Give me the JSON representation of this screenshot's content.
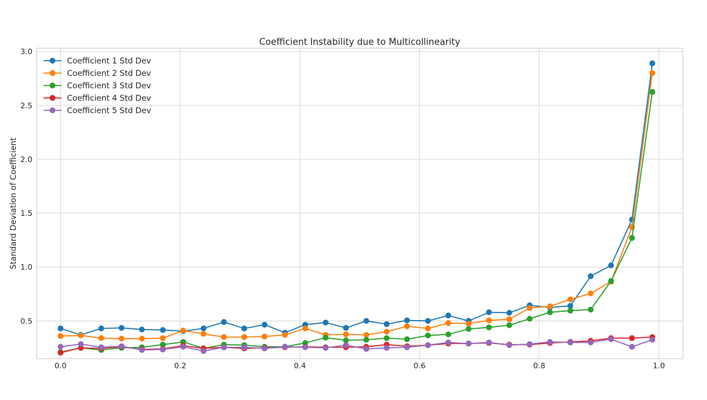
{
  "chart_data": {
    "type": "line",
    "title": "Coefficient Instability due to Multicollinearity",
    "xlabel": "",
    "ylabel": "Standard Deviation of Coefficient",
    "xlim": [
      -0.04,
      1.04
    ],
    "ylim": [
      0.15,
      3.03
    ],
    "xticks": [
      0.0,
      0.2,
      0.4,
      0.6,
      0.8,
      1.0
    ],
    "xtick_labels": [
      "0.0",
      "0.2",
      "0.4",
      "0.6",
      "0.8",
      "1.0"
    ],
    "yticks": [
      0.5,
      1.0,
      1.5,
      2.0,
      2.5,
      3.0
    ],
    "ytick_labels": [
      "0.5",
      "1.0",
      "1.5",
      "2.0",
      "2.5",
      "3.0"
    ],
    "grid": true,
    "legend_position": "upper-left",
    "x": [
      0.0,
      0.034,
      0.068,
      0.102,
      0.136,
      0.171,
      0.205,
      0.239,
      0.273,
      0.307,
      0.341,
      0.375,
      0.409,
      0.443,
      0.477,
      0.511,
      0.545,
      0.579,
      0.614,
      0.648,
      0.682,
      0.716,
      0.75,
      0.784,
      0.818,
      0.852,
      0.886,
      0.92,
      0.955,
      0.989
    ],
    "series": [
      {
        "name": "Coefficient 1 Std Dev",
        "color": "#1f77b4",
        "values": [
          0.43,
          0.37,
          0.43,
          0.435,
          0.42,
          0.415,
          0.405,
          0.43,
          0.49,
          0.43,
          0.465,
          0.39,
          0.465,
          0.485,
          0.435,
          0.5,
          0.47,
          0.505,
          0.5,
          0.55,
          0.5,
          0.58,
          0.575,
          0.645,
          0.625,
          0.64,
          0.915,
          1.015,
          1.44,
          2.89
        ]
      },
      {
        "name": "Coefficient 2 Std Dev",
        "color": "#ff7f0e",
        "values": [
          0.36,
          0.365,
          0.34,
          0.335,
          0.335,
          0.34,
          0.41,
          0.38,
          0.35,
          0.35,
          0.355,
          0.37,
          0.43,
          0.37,
          0.375,
          0.37,
          0.4,
          0.45,
          0.43,
          0.48,
          0.475,
          0.505,
          0.515,
          0.62,
          0.635,
          0.7,
          0.755,
          0.865,
          1.37,
          2.8
        ]
      },
      {
        "name": "Coefficient 3 Std Dev",
        "color": "#2ca02c",
        "values": [
          0.21,
          0.25,
          0.23,
          0.25,
          0.255,
          0.28,
          0.305,
          0.245,
          0.28,
          0.275,
          0.26,
          0.26,
          0.295,
          0.345,
          0.32,
          0.325,
          0.34,
          0.33,
          0.365,
          0.375,
          0.425,
          0.44,
          0.46,
          0.52,
          0.58,
          0.595,
          0.605,
          0.87,
          1.27,
          2.625
        ]
      },
      {
        "name": "Coefficient 4 Std Dev",
        "color": "#d62728",
        "values": [
          0.205,
          0.25,
          0.245,
          0.26,
          0.235,
          0.24,
          0.27,
          0.245,
          0.255,
          0.245,
          0.25,
          0.255,
          0.26,
          0.255,
          0.255,
          0.26,
          0.28,
          0.265,
          0.275,
          0.29,
          0.29,
          0.295,
          0.28,
          0.28,
          0.295,
          0.305,
          0.315,
          0.34,
          0.34,
          0.35
        ]
      },
      {
        "name": "Coefficient 5 Std Dev",
        "color": "#9467bd",
        "values": [
          0.26,
          0.285,
          0.255,
          0.265,
          0.23,
          0.235,
          0.26,
          0.22,
          0.255,
          0.255,
          0.245,
          0.26,
          0.255,
          0.25,
          0.275,
          0.24,
          0.25,
          0.255,
          0.275,
          0.3,
          0.29,
          0.3,
          0.275,
          0.285,
          0.305,
          0.3,
          0.3,
          0.33,
          0.26,
          0.325
        ]
      }
    ]
  }
}
